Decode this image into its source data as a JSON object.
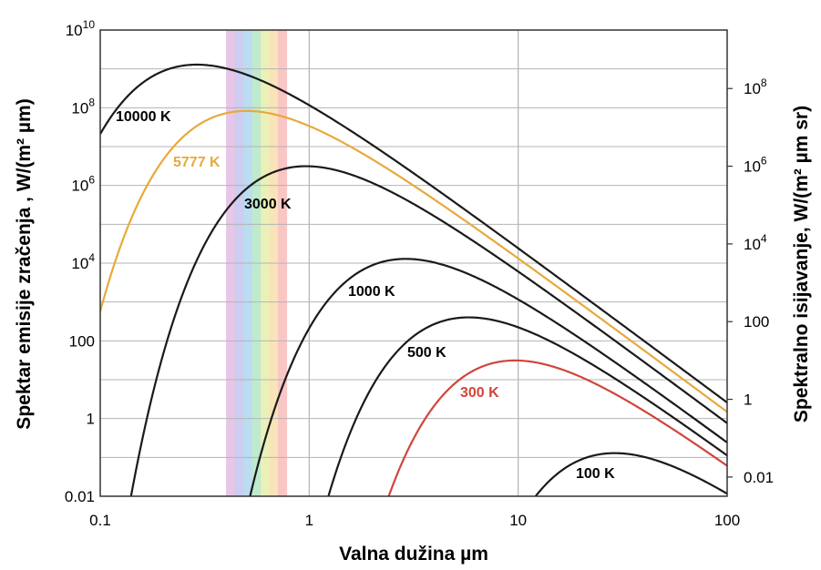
{
  "chart_data": {
    "type": "line",
    "x_scale": "log",
    "y_scale": "log",
    "xlim": [
      0.1,
      100
    ],
    "ylim": [
      0.01,
      10000000000
    ],
    "y2lim": [
      0.0032,
      3200000000
    ],
    "xlabel": "Valna dužina  µm",
    "ylabel": "Spektar emisije zračenja  , W/(m² µm)",
    "y2label": "Spektralno isijavanje, W/(m² µm sr)",
    "grid": true,
    "x_ticks": [
      {
        "value": 0.1,
        "label": "0.1"
      },
      {
        "value": 1,
        "label": "1"
      },
      {
        "value": 10,
        "label": "10"
      },
      {
        "value": 100,
        "label": "100"
      }
    ],
    "y_ticks": [
      {
        "value": 0.01,
        "base": "0.01",
        "exp": ""
      },
      {
        "value": 1,
        "base": "1",
        "exp": ""
      },
      {
        "value": 100,
        "base": "100",
        "exp": ""
      },
      {
        "value": 10000,
        "base": "10",
        "exp": "4"
      },
      {
        "value": 1000000,
        "base": "10",
        "exp": "6"
      },
      {
        "value": 100000000,
        "base": "10",
        "exp": "8"
      },
      {
        "value": 10000000000,
        "base": "10",
        "exp": "10"
      }
    ],
    "y2_ticks": [
      {
        "value": 0.01,
        "base": "0.01",
        "exp": ""
      },
      {
        "value": 1,
        "base": "1",
        "exp": ""
      },
      {
        "value": 100,
        "base": "100",
        "exp": ""
      },
      {
        "value": 10000,
        "base": "10",
        "exp": "4"
      },
      {
        "value": 1000000,
        "base": "10",
        "exp": "6"
      },
      {
        "value": 100000000,
        "base": "10",
        "exp": "8"
      }
    ],
    "visible_band": {
      "from": 0.4,
      "to": 0.78,
      "colors": [
        "#e6c0e6",
        "#c8c8f0",
        "#b4d8f0",
        "#b8e8c8",
        "#e8f0b0",
        "#f8e0b0",
        "#f8c0c0"
      ]
    },
    "series": [
      {
        "name": "10000 K",
        "temperature": 10000,
        "color": "#1a1a1a",
        "label_color": "#000000"
      },
      {
        "name": "5777 K",
        "temperature": 5777,
        "color": "#e8a93a",
        "label_color": "#e8a93a"
      },
      {
        "name": "3000 K",
        "temperature": 3000,
        "color": "#1a1a1a",
        "label_color": "#000000"
      },
      {
        "name": "1000 K",
        "temperature": 1000,
        "color": "#1a1a1a",
        "label_color": "#000000"
      },
      {
        "name": "500 K",
        "temperature": 500,
        "color": "#1a1a1a",
        "label_color": "#000000"
      },
      {
        "name": "300 K",
        "temperature": 300,
        "color": "#d0453c",
        "label_color": "#d0453c"
      },
      {
        "name": "100 K",
        "temperature": 100,
        "color": "#1a1a1a",
        "label_color": "#000000"
      }
    ]
  }
}
